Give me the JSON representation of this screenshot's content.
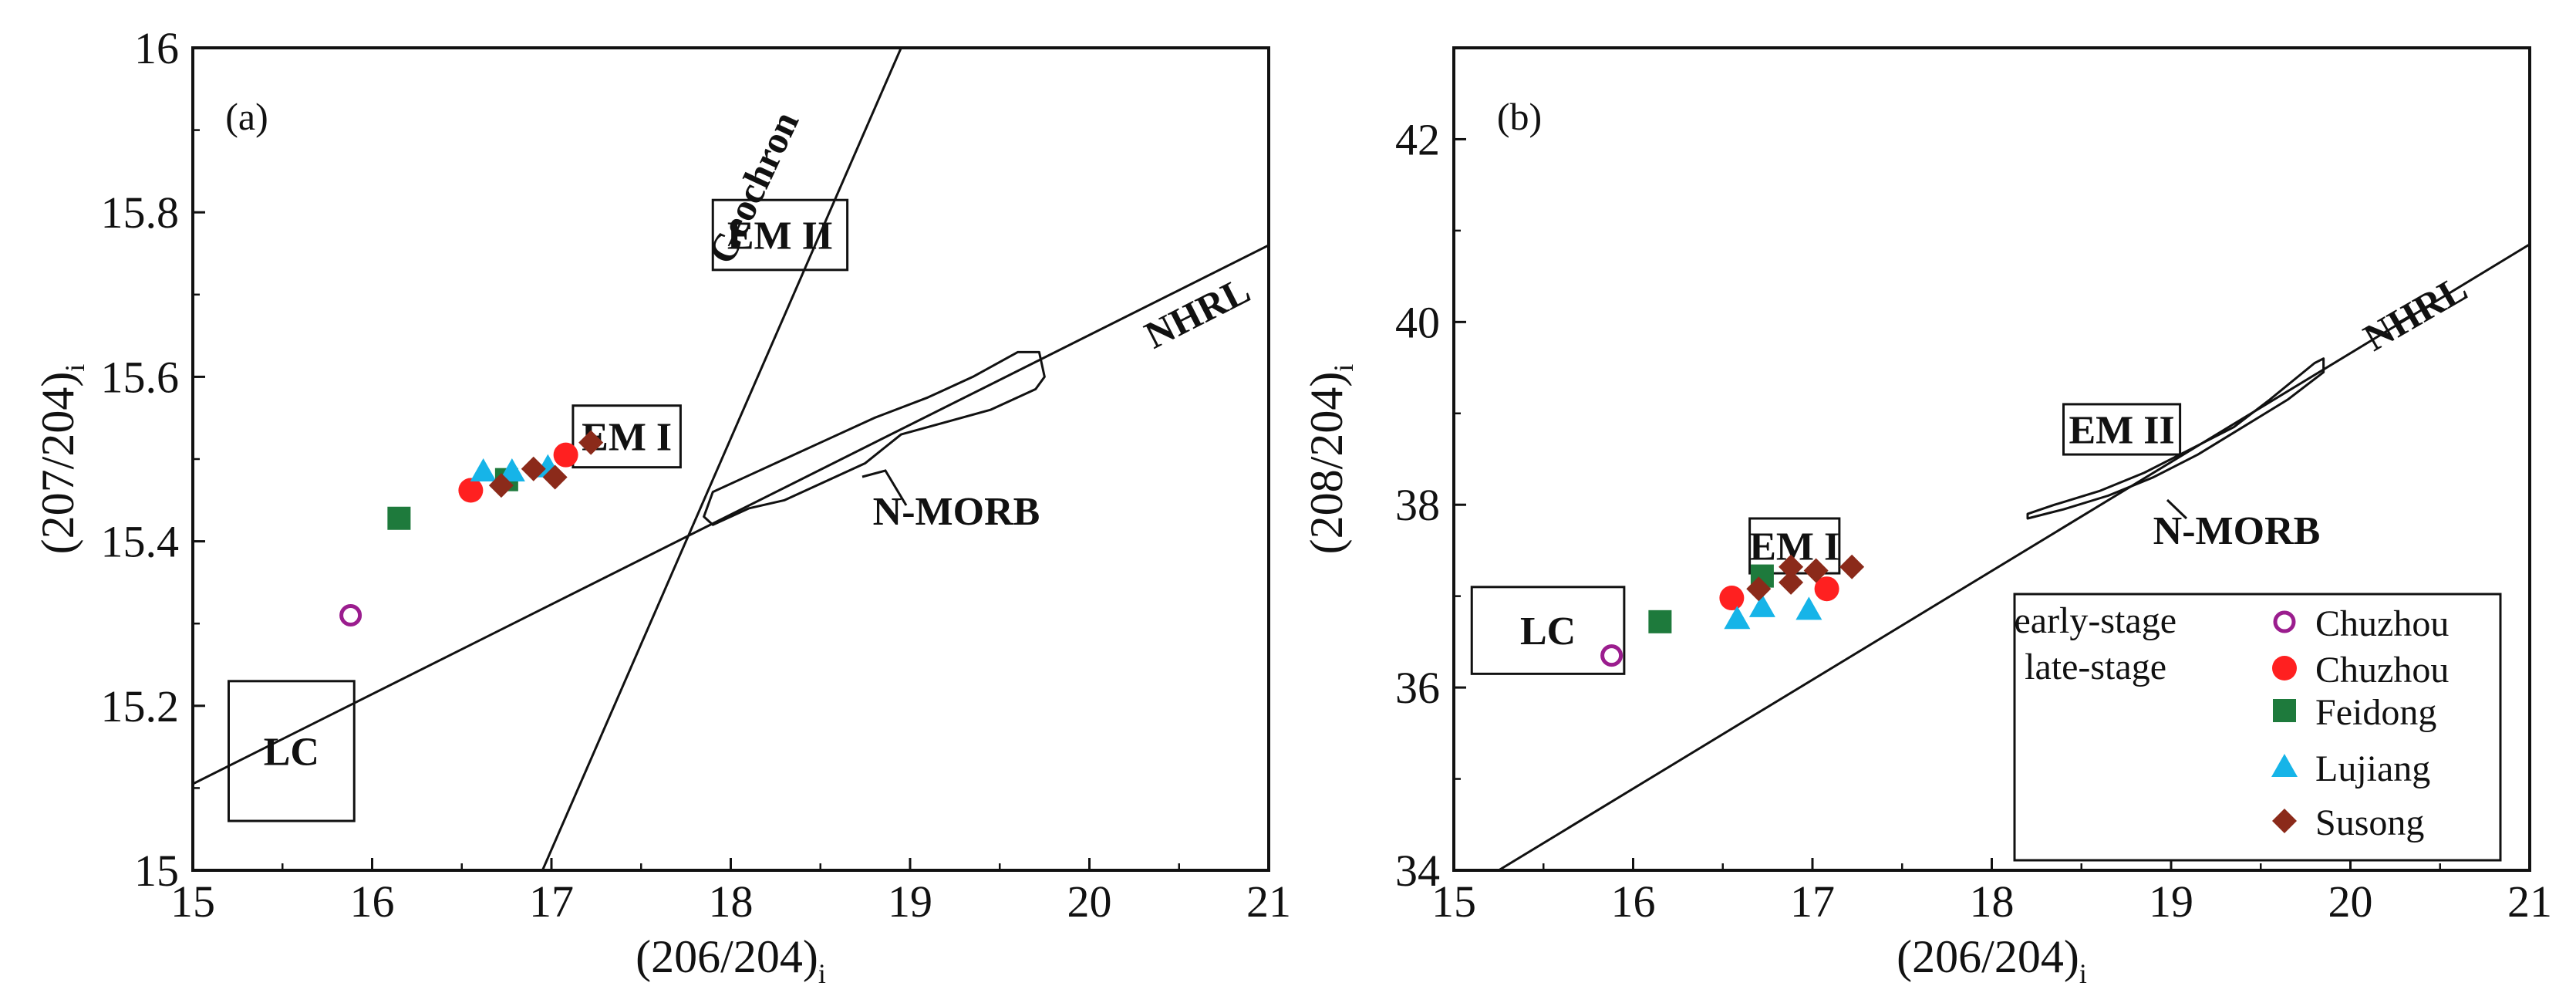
{
  "chart_data": [
    {
      "panel": "(a)",
      "type": "scatter",
      "xlabel": "(206/204)",
      "xlabel_sub": "i",
      "ylabel": "(207/204)",
      "ylabel_sub": "i",
      "xlim": [
        15,
        21
      ],
      "ylim": [
        15,
        16
      ],
      "xticks": [
        "15",
        "16",
        "17",
        "18",
        "19",
        "20",
        "21"
      ],
      "yticks": [
        "15",
        "15.2",
        "15.4",
        "15.6",
        "15.8",
        "16"
      ],
      "lines": [
        {
          "name": "NHRL",
          "x": [
            15,
            21
          ],
          "y": [
            15.105,
            15.76
          ]
        },
        {
          "name": "Geochron",
          "x": [
            16.95,
            18.95
          ],
          "y": [
            15.0,
            16.0
          ]
        }
      ],
      "regions": [
        {
          "name": "LC",
          "x": [
            15.2,
            15.9
          ],
          "y": [
            15.06,
            15.23
          ]
        },
        {
          "name": "EM I",
          "x": [
            17.12,
            17.72
          ],
          "y": [
            15.49,
            15.565
          ]
        },
        {
          "name": "EM II",
          "x": [
            17.9,
            18.65
          ],
          "y": [
            15.73,
            15.815
          ]
        }
      ],
      "nmorb": {
        "label": "N-MORB",
        "outline": [
          [
            17.85,
            15.43
          ],
          [
            17.9,
            15.46
          ],
          [
            18.1,
            15.48
          ],
          [
            18.3,
            15.5
          ],
          [
            18.5,
            15.52
          ],
          [
            18.8,
            15.55
          ],
          [
            19.1,
            15.575
          ],
          [
            19.35,
            15.6
          ],
          [
            19.6,
            15.63
          ],
          [
            19.72,
            15.63
          ],
          [
            19.75,
            15.6
          ],
          [
            19.7,
            15.585
          ],
          [
            19.45,
            15.56
          ],
          [
            19.2,
            15.545
          ],
          [
            18.95,
            15.53
          ],
          [
            18.75,
            15.495
          ],
          [
            18.5,
            15.47
          ],
          [
            18.3,
            15.45
          ],
          [
            18.1,
            15.44
          ],
          [
            17.9,
            15.42
          ],
          [
            17.85,
            15.43
          ]
        ]
      },
      "series": [
        {
          "name": "early-stage Chuzhou",
          "marker": "circle-open",
          "color": "#9b1d8e",
          "points": [
            [
              15.88,
              15.31
            ]
          ]
        },
        {
          "name": "late-stage Chuzhou",
          "marker": "circle",
          "color": "#ff2020",
          "points": [
            [
              16.55,
              15.462
            ],
            [
              17.08,
              15.505
            ]
          ]
        },
        {
          "name": "Feidong",
          "marker": "square",
          "color": "#1e7a3c",
          "points": [
            [
              16.15,
              15.428
            ],
            [
              16.75,
              15.475
            ]
          ]
        },
        {
          "name": "Lujiang",
          "marker": "triangle",
          "color": "#16b4e8",
          "points": [
            [
              16.62,
              15.485
            ],
            [
              16.78,
              15.485
            ],
            [
              16.98,
              15.49
            ]
          ]
        },
        {
          "name": "Susong",
          "marker": "diamond",
          "color": "#8b2a1a",
          "points": [
            [
              16.72,
              15.468
            ],
            [
              16.9,
              15.488
            ],
            [
              17.02,
              15.478
            ],
            [
              17.22,
              15.52
            ]
          ]
        }
      ]
    },
    {
      "panel": "(b)",
      "type": "scatter",
      "xlabel": "(206/204)",
      "xlabel_sub": "i",
      "ylabel": "(208/204)",
      "ylabel_sub": "i",
      "xlim": [
        15,
        21
      ],
      "ylim": [
        34,
        43
      ],
      "xticks": [
        "15",
        "16",
        "17",
        "18",
        "19",
        "20",
        "21"
      ],
      "yticks": [
        "34",
        "36",
        "38",
        "40",
        "42"
      ],
      "lines": [
        {
          "name": "NHRL",
          "x": [
            15.25,
            21
          ],
          "y": [
            34.0,
            40.85
          ]
        }
      ],
      "regions": [
        {
          "name": "LC",
          "x": [
            15.1,
            15.95
          ],
          "y": [
            36.15,
            37.1
          ]
        },
        {
          "name": "EM I",
          "x": [
            16.65,
            17.15
          ],
          "y": [
            37.25,
            37.85
          ]
        },
        {
          "name": "EM II",
          "x": [
            18.4,
            19.05
          ],
          "y": [
            38.55,
            39.1
          ]
        }
      ],
      "nmorb": {
        "label": "N-MORB",
        "outline": [
          [
            18.2,
            37.9
          ],
          [
            18.35,
            38.0
          ],
          [
            18.6,
            38.15
          ],
          [
            18.85,
            38.35
          ],
          [
            19.1,
            38.6
          ],
          [
            19.35,
            38.85
          ],
          [
            19.55,
            39.15
          ],
          [
            19.8,
            39.55
          ],
          [
            19.85,
            39.6
          ],
          [
            19.85,
            39.45
          ],
          [
            19.65,
            39.15
          ],
          [
            19.4,
            38.85
          ],
          [
            19.15,
            38.55
          ],
          [
            18.9,
            38.3
          ],
          [
            18.65,
            38.1
          ],
          [
            18.4,
            37.95
          ],
          [
            18.2,
            37.85
          ],
          [
            18.2,
            37.9
          ]
        ]
      },
      "series": [
        {
          "name": "early-stage Chuzhou",
          "marker": "circle-open",
          "color": "#9b1d8e",
          "points": [
            [
              15.88,
              36.35
            ]
          ]
        },
        {
          "name": "late-stage Chuzhou",
          "marker": "circle",
          "color": "#ff2020",
          "points": [
            [
              16.55,
              36.98
            ],
            [
              17.08,
              37.08
            ]
          ]
        },
        {
          "name": "Feidong",
          "marker": "square",
          "color": "#1e7a3c",
          "points": [
            [
              16.15,
              36.72
            ],
            [
              16.72,
              37.22
            ]
          ]
        },
        {
          "name": "Lujiang",
          "marker": "triangle",
          "color": "#16b4e8",
          "points": [
            [
              16.58,
              36.75
            ],
            [
              16.72,
              36.88
            ],
            [
              16.98,
              36.85
            ]
          ]
        },
        {
          "name": "Susong",
          "marker": "diamond",
          "color": "#8b2a1a",
          "points": [
            [
              16.7,
              37.08
            ],
            [
              16.88,
              37.32
            ],
            [
              16.88,
              37.15
            ],
            [
              17.02,
              37.28
            ],
            [
              17.22,
              37.32
            ]
          ]
        }
      ],
      "legend": {
        "position": "bottom-right",
        "group_labels": [
          "early-stage",
          "late-stage"
        ],
        "entries": [
          "Chuzhou",
          "Chuzhou",
          "Feidong",
          "Lujiang",
          "Susong"
        ]
      }
    }
  ]
}
